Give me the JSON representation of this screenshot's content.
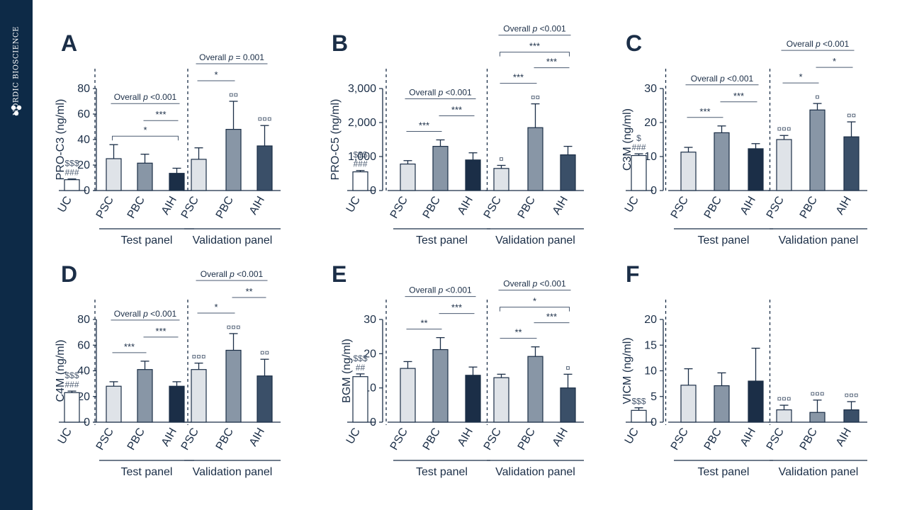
{
  "brand": {
    "name": "NORDIC BIOSCIENCE",
    "colors": {
      "sidebar": "#0d2a47",
      "text": "#ffffff"
    }
  },
  "palette": {
    "UC": "#ffffff",
    "PSC": "#dfe3e8",
    "PBC": "#8896a6",
    "AIH_test": "#1b2e47",
    "AIH_validation": "#3a4f68",
    "axis": "#1b2e47",
    "annotation": "#4a5a70"
  },
  "chart_data": [
    {
      "panel": "A",
      "type": "bar",
      "ylabel": "PRO-C3 (ng/ml)",
      "ylim": [
        0,
        80
      ],
      "yticks": [
        "0",
        "20",
        "40",
        "60",
        "80"
      ],
      "categories": [
        "UC",
        "PSC",
        "PBC",
        "AIH",
        "PSC",
        "PBC",
        "AIH"
      ],
      "groups": [
        "UC",
        "Test panel",
        "Test panel",
        "Test panel",
        "Validation panel",
        "Validation panel",
        "Validation panel"
      ],
      "values": [
        8.5,
        25,
        21.5,
        13.5,
        24.5,
        48,
        35
      ],
      "errors": [
        0.6,
        11,
        7,
        4,
        9,
        22,
        16
      ],
      "bar_labels": [
        "$$$\n###",
        "",
        "",
        "",
        "",
        "¤¤",
        "¤¤¤"
      ],
      "group_labels": [
        "Test panel",
        "Validation panel"
      ],
      "overall": [
        {
          "group": "Test panel",
          "text": "Overall p <0.001"
        },
        {
          "group": "Validation panel",
          "text": "Overall p = 0.001"
        }
      ],
      "comparisons": [
        {
          "from": 1,
          "to": 3,
          "label": "*"
        },
        {
          "from": 2,
          "to": 3,
          "label": "***"
        },
        {
          "from": 4,
          "to": 5,
          "label": "*"
        }
      ],
      "grid": false
    },
    {
      "panel": "B",
      "type": "bar",
      "ylabel": "PRO-C5 (ng/ml)",
      "ylim": [
        0,
        3000
      ],
      "yticks": [
        "0",
        "1,000",
        "2,000",
        "3,000"
      ],
      "categories": [
        "UC",
        "PSC",
        "PBC",
        "AIH",
        "PSC",
        "PBC",
        "AIH"
      ],
      "groups": [
        "UC",
        "Test panel",
        "Test panel",
        "Test panel",
        "Validation panel",
        "Validation panel",
        "Validation panel"
      ],
      "values": [
        550,
        780,
        1300,
        900,
        650,
        1850,
        1050
      ],
      "errors": [
        40,
        100,
        190,
        210,
        90,
        700,
        250
      ],
      "bar_labels": [
        "$$$\n###",
        "",
        "",
        "",
        "¤",
        "¤¤",
        ""
      ],
      "group_labels": [
        "Test panel",
        "Validation panel"
      ],
      "overall": [
        {
          "group": "Test panel",
          "text": "Overall p <0.001"
        },
        {
          "group": "Validation panel",
          "text": "Overall p <0.001"
        }
      ],
      "comparisons": [
        {
          "from": 1,
          "to": 2,
          "label": "***"
        },
        {
          "from": 2,
          "to": 3,
          "label": "***"
        },
        {
          "from": 4,
          "to": 5,
          "label": "***"
        },
        {
          "from": 5,
          "to": 6,
          "label": "***"
        },
        {
          "from": 4,
          "to": 6,
          "label": "***"
        }
      ],
      "grid": false
    },
    {
      "panel": "C",
      "type": "bar",
      "ylabel": "C3M (ng/ml)",
      "ylim": [
        0,
        30
      ],
      "yticks": [
        "0",
        "10",
        "20",
        "30"
      ],
      "categories": [
        "UC",
        "PSC",
        "PBC",
        "AIH",
        "PSC",
        "PBC",
        "AIH"
      ],
      "groups": [
        "UC",
        "Test panel",
        "Test panel",
        "Test panel",
        "Validation panel",
        "Validation panel",
        "Validation panel"
      ],
      "values": [
        10.3,
        11.3,
        17,
        12.3,
        15,
        23.7,
        15.8
      ],
      "errors": [
        0.5,
        1.4,
        2,
        1.5,
        1.2,
        1.9,
        4.4
      ],
      "bar_labels": [
        "$\n###",
        "",
        "",
        "",
        "¤¤¤",
        "¤",
        "¤¤"
      ],
      "group_labels": [
        "Test panel",
        "Validation panel"
      ],
      "overall": [
        {
          "group": "Test panel",
          "text": "Overall p <0.001"
        },
        {
          "group": "Validation panel",
          "text": "Overall p <0.001"
        }
      ],
      "comparisons": [
        {
          "from": 1,
          "to": 2,
          "label": "***"
        },
        {
          "from": 2,
          "to": 3,
          "label": "***"
        },
        {
          "from": 4,
          "to": 5,
          "label": "*"
        },
        {
          "from": 5,
          "to": 6,
          "label": "*"
        }
      ],
      "grid": false
    },
    {
      "panel": "D",
      "type": "bar",
      "ylabel": "C4M (ng/ml)",
      "ylim": [
        0,
        80
      ],
      "yticks": [
        "0",
        "20",
        "40",
        "60",
        "80"
      ],
      "categories": [
        "UC",
        "PSC",
        "PBC",
        "AIH",
        "PSC",
        "PBC",
        "AIH"
      ],
      "groups": [
        "UC",
        "Test panel",
        "Test panel",
        "Test panel",
        "Validation panel",
        "Validation panel",
        "Validation panel"
      ],
      "values": [
        23,
        28,
        41,
        28,
        41,
        56,
        36
      ],
      "errors": [
        1.2,
        3.5,
        6.5,
        3.5,
        5,
        13,
        13
      ],
      "bar_labels": [
        "$$$\n###",
        "",
        "",
        "",
        "¤¤¤",
        "¤¤¤",
        "¤¤"
      ],
      "group_labels": [
        "Test panel",
        "Validation panel"
      ],
      "overall": [
        {
          "group": "Test panel",
          "text": "Overall p <0.001"
        },
        {
          "group": "Validation panel",
          "text": "Overall p <0.001"
        }
      ],
      "comparisons": [
        {
          "from": 1,
          "to": 2,
          "label": "***"
        },
        {
          "from": 2,
          "to": 3,
          "label": "***"
        },
        {
          "from": 4,
          "to": 5,
          "label": "*"
        },
        {
          "from": 5,
          "to": 6,
          "label": "**"
        }
      ],
      "grid": false
    },
    {
      "panel": "E",
      "type": "bar",
      "ylabel": "BGM (ng/ml)",
      "ylim": [
        0,
        30
      ],
      "yticks": [
        "0",
        "10",
        "20",
        "30"
      ],
      "categories": [
        "UC",
        "PSC",
        "PBC",
        "AIH",
        "PSC",
        "PBC",
        "AIH"
      ],
      "groups": [
        "UC",
        "Test panel",
        "Test panel",
        "Test panel",
        "Validation panel",
        "Validation panel",
        "Validation panel"
      ],
      "values": [
        13.3,
        15.7,
        21.2,
        13.7,
        13,
        19.2,
        10
      ],
      "errors": [
        0.8,
        2,
        3.5,
        2.4,
        1,
        2.8,
        4
      ],
      "bar_labels": [
        "$$$\n##",
        "",
        "",
        "",
        "",
        "",
        "¤"
      ],
      "group_labels": [
        "Test panel",
        "Validation panel"
      ],
      "overall": [
        {
          "group": "Test panel",
          "text": "Overall p <0.001"
        },
        {
          "group": "Validation panel",
          "text": "Overall p <0.001"
        }
      ],
      "comparisons": [
        {
          "from": 1,
          "to": 2,
          "label": "**"
        },
        {
          "from": 2,
          "to": 3,
          "label": "***"
        },
        {
          "from": 4,
          "to": 5,
          "label": "**"
        },
        {
          "from": 5,
          "to": 6,
          "label": "***"
        },
        {
          "from": 4,
          "to": 6,
          "label": "*"
        }
      ],
      "grid": false
    },
    {
      "panel": "F",
      "type": "bar",
      "ylabel": "VICM (ng/ml)",
      "ylim": [
        0,
        20
      ],
      "yticks": [
        "0",
        "5",
        "10",
        "15",
        "20"
      ],
      "categories": [
        "UC",
        "PSC",
        "PBC",
        "AIH",
        "PSC",
        "PBC",
        "AIH"
      ],
      "groups": [
        "UC",
        "Test panel",
        "Test panel",
        "Test panel",
        "Validation panel",
        "Validation panel",
        "Validation panel"
      ],
      "values": [
        2.3,
        7.2,
        7.1,
        8,
        2.4,
        1.9,
        2.4
      ],
      "errors": [
        0.5,
        3.2,
        2.5,
        6.4,
        0.9,
        2.4,
        1.6
      ],
      "bar_labels": [
        "$$$",
        "",
        "",
        "",
        "¤¤¤",
        "¤¤¤",
        "¤¤¤"
      ],
      "group_labels": [
        "Test panel",
        "Validation panel"
      ],
      "overall": [],
      "comparisons": [],
      "grid": false
    }
  ]
}
